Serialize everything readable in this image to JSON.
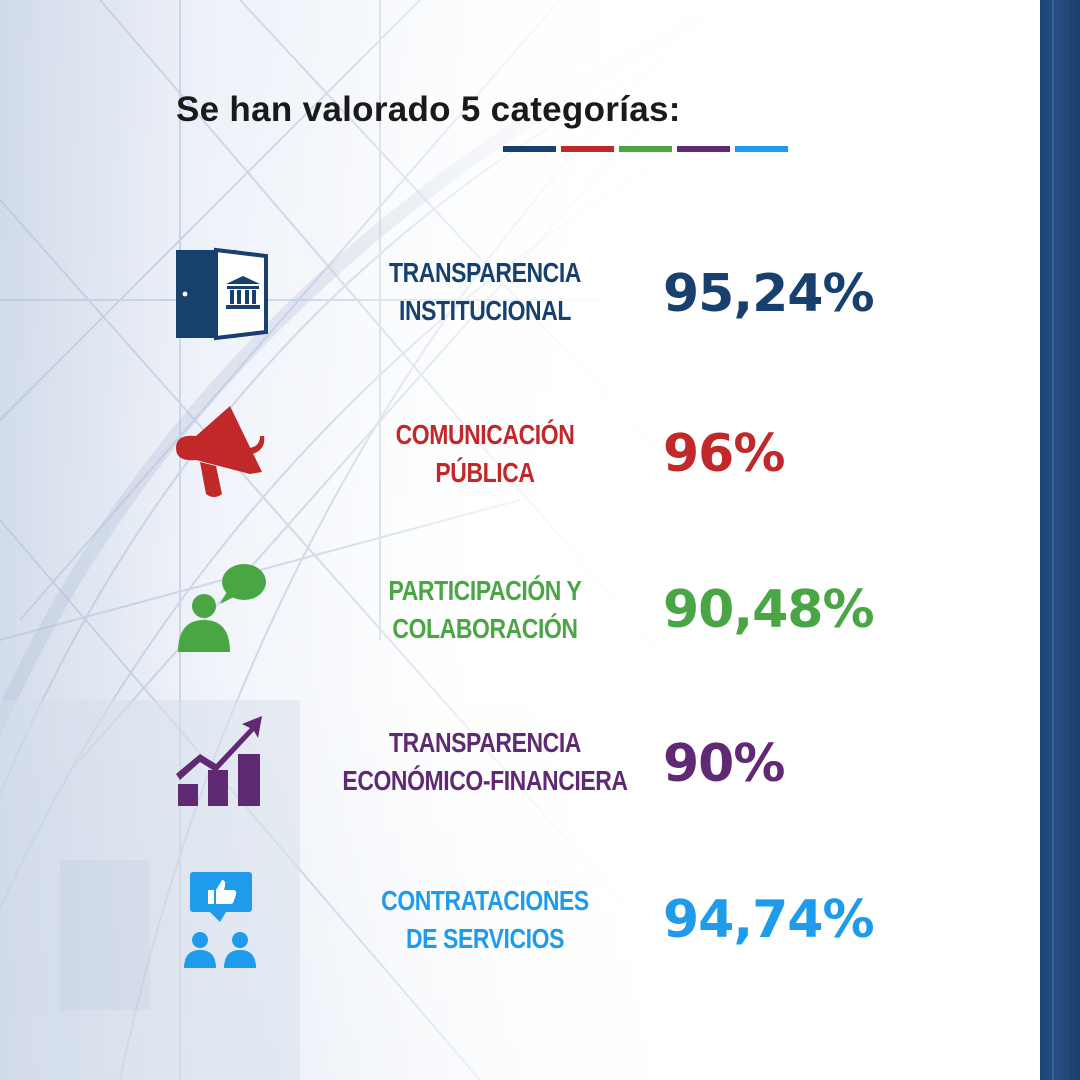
{
  "title": "Se han valorado 5 categorías:",
  "colors": {
    "navy": "#17406f",
    "red": "#c0282a",
    "green": "#4aa545",
    "purple": "#5f2a73",
    "blue": "#1e9bea"
  },
  "categories": [
    {
      "icon": "door-bank-icon",
      "line1": "TRANSPARENCIA",
      "line2": "INSTITUCIONAL",
      "value": "95,24%",
      "color": "#17406f"
    },
    {
      "icon": "megaphone-icon",
      "line1": "COMUNICACIÓN",
      "line2": "PÚBLICA",
      "value": "96%",
      "color": "#c0282a"
    },
    {
      "icon": "person-speech-icon",
      "line1": "PARTICIPACIÓN Y",
      "line2": "COLABORACIÓN",
      "value": "90,48%",
      "color": "#4aa545"
    },
    {
      "icon": "growth-chart-icon",
      "line1": "TRANSPARENCIA",
      "line2": "ECONÓMICO-FINANCIERA",
      "value": "90%",
      "color": "#5f2a73"
    },
    {
      "icon": "like-people-icon",
      "line1": "CONTRATACIONES",
      "line2": "DE SERVICIOS",
      "value": "94,74%",
      "color": "#1e9bea"
    }
  ]
}
